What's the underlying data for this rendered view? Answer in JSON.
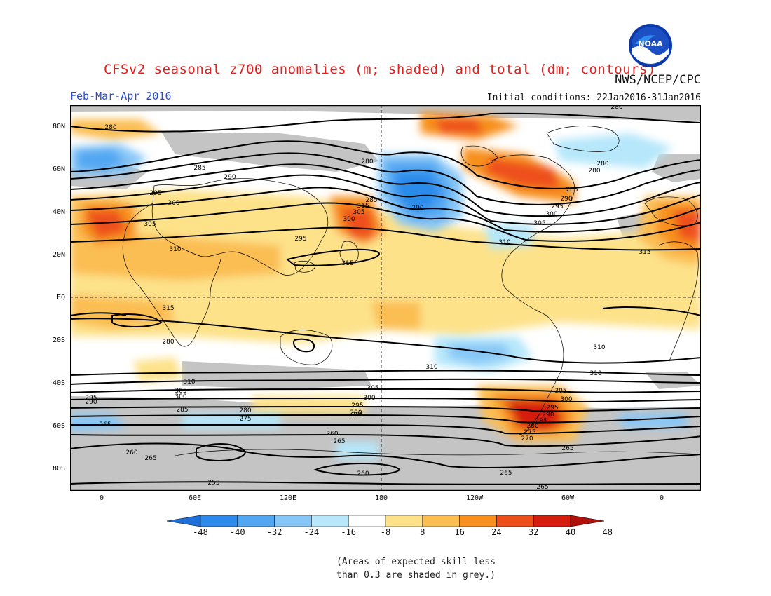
{
  "header": {
    "title": "CFSv2 seasonal z700 anomalies (m; shaded) and total (dm; contours)",
    "agency": "NWS/NCEP/CPC",
    "season": "Feb-Mar-Apr 2016",
    "initial_conditions": "Initial conditions: 22Jan2016-31Jan2016",
    "logo_text": "NOAA"
  },
  "map": {
    "lat_labels": [
      "80N",
      "60N",
      "40N",
      "20N",
      "EQ",
      "20S",
      "40S",
      "60S",
      "80S"
    ],
    "lon_labels": [
      "0",
      "60E",
      "120E",
      "180",
      "120W",
      "60W",
      "0"
    ],
    "contour_labels": [
      "280",
      "285",
      "290",
      "295",
      "300",
      "305",
      "310",
      "315",
      "280",
      "285",
      "290",
      "295",
      "300",
      "305",
      "315",
      "285",
      "290",
      "280",
      "280",
      "285",
      "290",
      "295",
      "300",
      "305",
      "310",
      "315",
      "315",
      "310",
      "310",
      "305",
      "300",
      "295",
      "290",
      "285",
      "280",
      "275",
      "270",
      "265",
      "260",
      "265",
      "260",
      "265",
      "255",
      "260",
      "265",
      "310",
      "305",
      "300",
      "295",
      "290",
      "285",
      "305",
      "300",
      "295",
      "290",
      "285",
      "280",
      "275",
      "270",
      "265",
      "260",
      "315",
      "310"
    ]
  },
  "colorbar": {
    "labels": [
      "-48",
      "-40",
      "-32",
      "-24",
      "-16",
      "-8",
      "8",
      "16",
      "24",
      "32",
      "40",
      "48"
    ],
    "colors": [
      "#1e6fd9",
      "#2c8bea",
      "#52a7f2",
      "#87c7f7",
      "#b6e7fa",
      "#ffffff",
      "#fde28a",
      "#fbbe52",
      "#f7901f",
      "#ee4f1a",
      "#d61b0f",
      "#b10f0a"
    ]
  },
  "footnote": {
    "line1": "(Areas of expected skill less",
    "line2": "than 0.3 are shaded in grey.)"
  }
}
